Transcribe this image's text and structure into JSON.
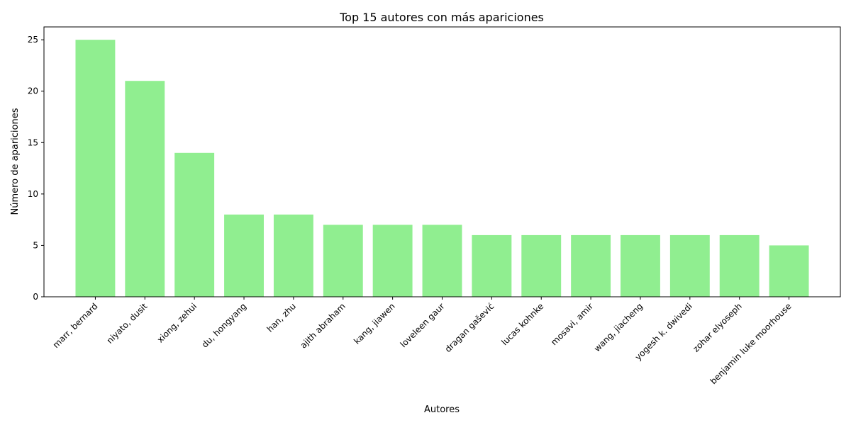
{
  "chart_data": {
    "type": "bar",
    "title": "Top 15 autores con más apariciones",
    "xlabel": "Autores",
    "ylabel": "Número de apariciones",
    "categories": [
      "marr, bernard",
      "niyato, dusit",
      "xiong, zehui",
      "du, hongyang",
      "han, zhu",
      "ajith abraham",
      "kang, jiawen",
      "loveleen gaur",
      "dragan gašević",
      "lucas kohnke",
      "mosavi, amir",
      "wang, jiacheng",
      "yogesh k. dwivedi",
      "zohar elyoseph",
      "benjamin luke moorhouse"
    ],
    "values": [
      25,
      21,
      14,
      8,
      8,
      7,
      7,
      7,
      6,
      6,
      6,
      6,
      6,
      6,
      5
    ],
    "ylim": [
      0,
      26.25
    ],
    "yticks": [
      0,
      5,
      10,
      15,
      20,
      25
    ],
    "bar_color": "#90ee90",
    "grid": false,
    "legend": "none"
  }
}
